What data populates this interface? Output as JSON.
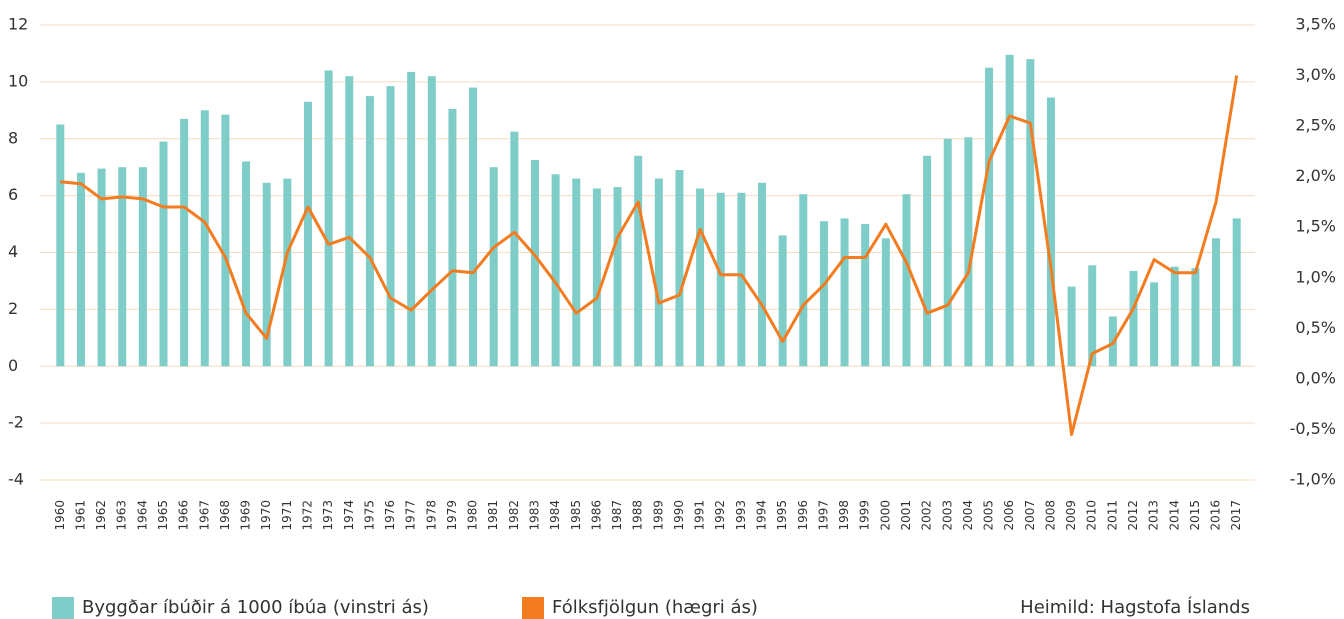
{
  "chart_data": {
    "type": "bar-line",
    "categories": [
      "1960",
      "1961",
      "1962",
      "1963",
      "1964",
      "1965",
      "1966",
      "1967",
      "1968",
      "1969",
      "1970",
      "1971",
      "1972",
      "1973",
      "1974",
      "1975",
      "1976",
      "1977",
      "1978",
      "1979",
      "1980",
      "1981",
      "1982",
      "1983",
      "1984",
      "1985",
      "1986",
      "1987",
      "1988",
      "1989",
      "1990",
      "1991",
      "1992",
      "1993",
      "1994",
      "1995",
      "1996",
      "1997",
      "1998",
      "1999",
      "2000",
      "2001",
      "2002",
      "2003",
      "2004",
      "2005",
      "2006",
      "2007",
      "2008",
      "2009",
      "2010",
      "2011",
      "2012",
      "2013",
      "2014",
      "2015",
      "2016",
      "2017"
    ],
    "series": [
      {
        "name": "Byggðar íbúðir á 1000 íbúa (vinstri ás)",
        "type": "bar",
        "color": "#7ecdc9",
        "values": [
          8.5,
          6.8,
          6.95,
          7.0,
          7.0,
          7.9,
          8.7,
          9.0,
          8.85,
          7.2,
          6.45,
          6.6,
          9.3,
          10.4,
          10.2,
          9.5,
          9.85,
          10.35,
          10.2,
          9.05,
          9.8,
          7.0,
          8.25,
          7.25,
          6.75,
          6.6,
          6.25,
          6.3,
          7.4,
          6.6,
          6.9,
          6.25,
          6.1,
          6.1,
          6.45,
          4.6,
          6.05,
          5.1,
          5.2,
          5.0,
          4.5,
          6.05,
          7.4,
          8.0,
          8.05,
          10.5,
          10.95,
          10.8,
          9.45,
          2.8,
          3.55,
          1.75,
          3.35,
          2.95,
          3.5,
          3.45,
          4.5,
          5.2
        ]
      },
      {
        "name": "Fólksfjölgun (hægri ás)",
        "type": "line",
        "axis": "y2",
        "color": "#f47c20",
        "values": [
          1.95,
          1.93,
          1.78,
          1.8,
          1.78,
          1.7,
          1.7,
          1.55,
          1.2,
          0.65,
          0.4,
          1.25,
          1.7,
          1.33,
          1.4,
          1.2,
          0.8,
          0.68,
          0.88,
          1.07,
          1.05,
          1.3,
          1.45,
          1.22,
          0.95,
          0.65,
          0.8,
          1.4,
          1.75,
          0.75,
          0.83,
          1.48,
          1.03,
          1.03,
          0.73,
          0.37,
          0.73,
          0.93,
          1.2,
          1.2,
          1.53,
          1.15,
          0.65,
          0.73,
          1.05,
          2.15,
          2.6,
          2.53,
          1.1,
          -0.55,
          0.25,
          0.35,
          0.7,
          1.18,
          1.05,
          1.05,
          1.75,
          3.0
        ]
      }
    ],
    "ylim": [
      -4,
      12
    ],
    "yticks": [
      -4,
      -2,
      0,
      2,
      4,
      6,
      8,
      10,
      12
    ],
    "y2lim": [
      -1,
      3.5
    ],
    "y2ticks": [
      {
        "value": -1,
        "label": "-1,0%"
      },
      {
        "value": -0.5,
        "label": "-0,5%"
      },
      {
        "value": 0,
        "label": "0,0%"
      },
      {
        "value": 0.5,
        "label": "0,5%"
      },
      {
        "value": 1,
        "label": "1,0%"
      },
      {
        "value": 1.5,
        "label": "1,5%"
      },
      {
        "value": 2,
        "label": "2,0%"
      },
      {
        "value": 2.5,
        "label": "2,5%"
      },
      {
        "value": 3,
        "label": "3,0%"
      },
      {
        "value": 3.5,
        "label": "3,5%"
      }
    ],
    "grid": true,
    "grid_color": "#f5dcc0",
    "source": "Heimild: Hagstofa Íslands"
  }
}
